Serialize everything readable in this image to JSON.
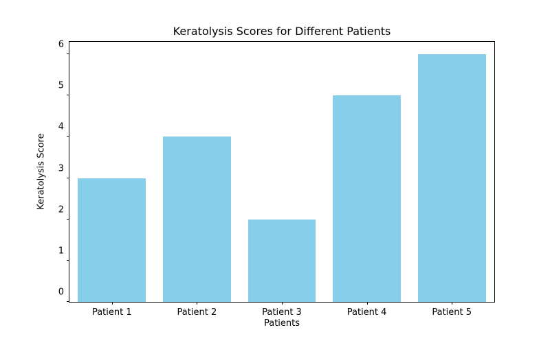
{
  "chart_data": {
    "type": "bar",
    "title": "Keratolysis Scores for Different Patients",
    "xlabel": "Patients",
    "ylabel": "Keratolysis Score",
    "categories": [
      "Patient 1",
      "Patient 2",
      "Patient 3",
      "Patient 4",
      "Patient 5"
    ],
    "values": [
      3,
      4,
      2,
      5,
      6
    ],
    "yticks": [
      0,
      1,
      2,
      3,
      4,
      5,
      6
    ],
    "ylim": [
      0,
      6.3
    ],
    "bar_color": "#87CEEB",
    "grid": "off",
    "legend": "none"
  }
}
